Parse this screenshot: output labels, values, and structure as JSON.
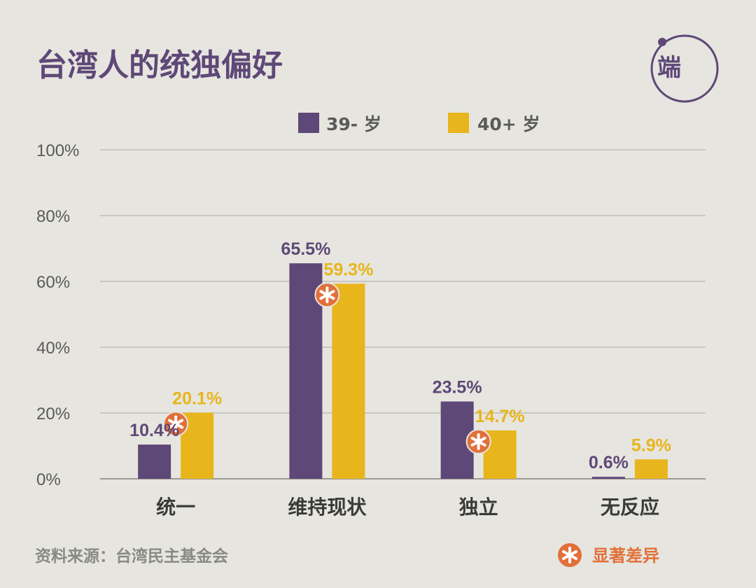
{
  "title": "台湾人的统独偏好",
  "logo_text": "端",
  "source": "资料来源：台湾民主基金会",
  "legend_note": "显著差异",
  "colors": {
    "background": "#e6e5df",
    "title": "#5e4877",
    "series_young": "#5e4877",
    "series_old": "#e8b51c",
    "marker": "#e2703a",
    "axis_text": "#5a5a5a",
    "gridline": "#bdbdb6",
    "category_text": "#3a3a3a",
    "source_text": "#8a8a84"
  },
  "chart_data": {
    "type": "bar",
    "categories": [
      "统一",
      "维持现状",
      "独立",
      "无反应"
    ],
    "series": [
      {
        "name": "39- 岁",
        "values": [
          10.4,
          65.5,
          23.5,
          0.6
        ]
      },
      {
        "name": "40+ 岁",
        "values": [
          20.1,
          59.3,
          14.7,
          5.9
        ]
      }
    ],
    "data_labels": [
      [
        "10.4%",
        "65.5%",
        "23.5%",
        "0.6%"
      ],
      [
        "20.1%",
        "59.3%",
        "14.7%",
        "5.9%"
      ]
    ],
    "significant": [
      true,
      true,
      true,
      false
    ],
    "yticks": [
      "0%",
      "20%",
      "40%",
      "60%",
      "80%",
      "100%"
    ],
    "ylim": [
      0,
      100
    ],
    "grid": true,
    "legend_position": "top-center",
    "xlabel": "",
    "ylabel": ""
  }
}
